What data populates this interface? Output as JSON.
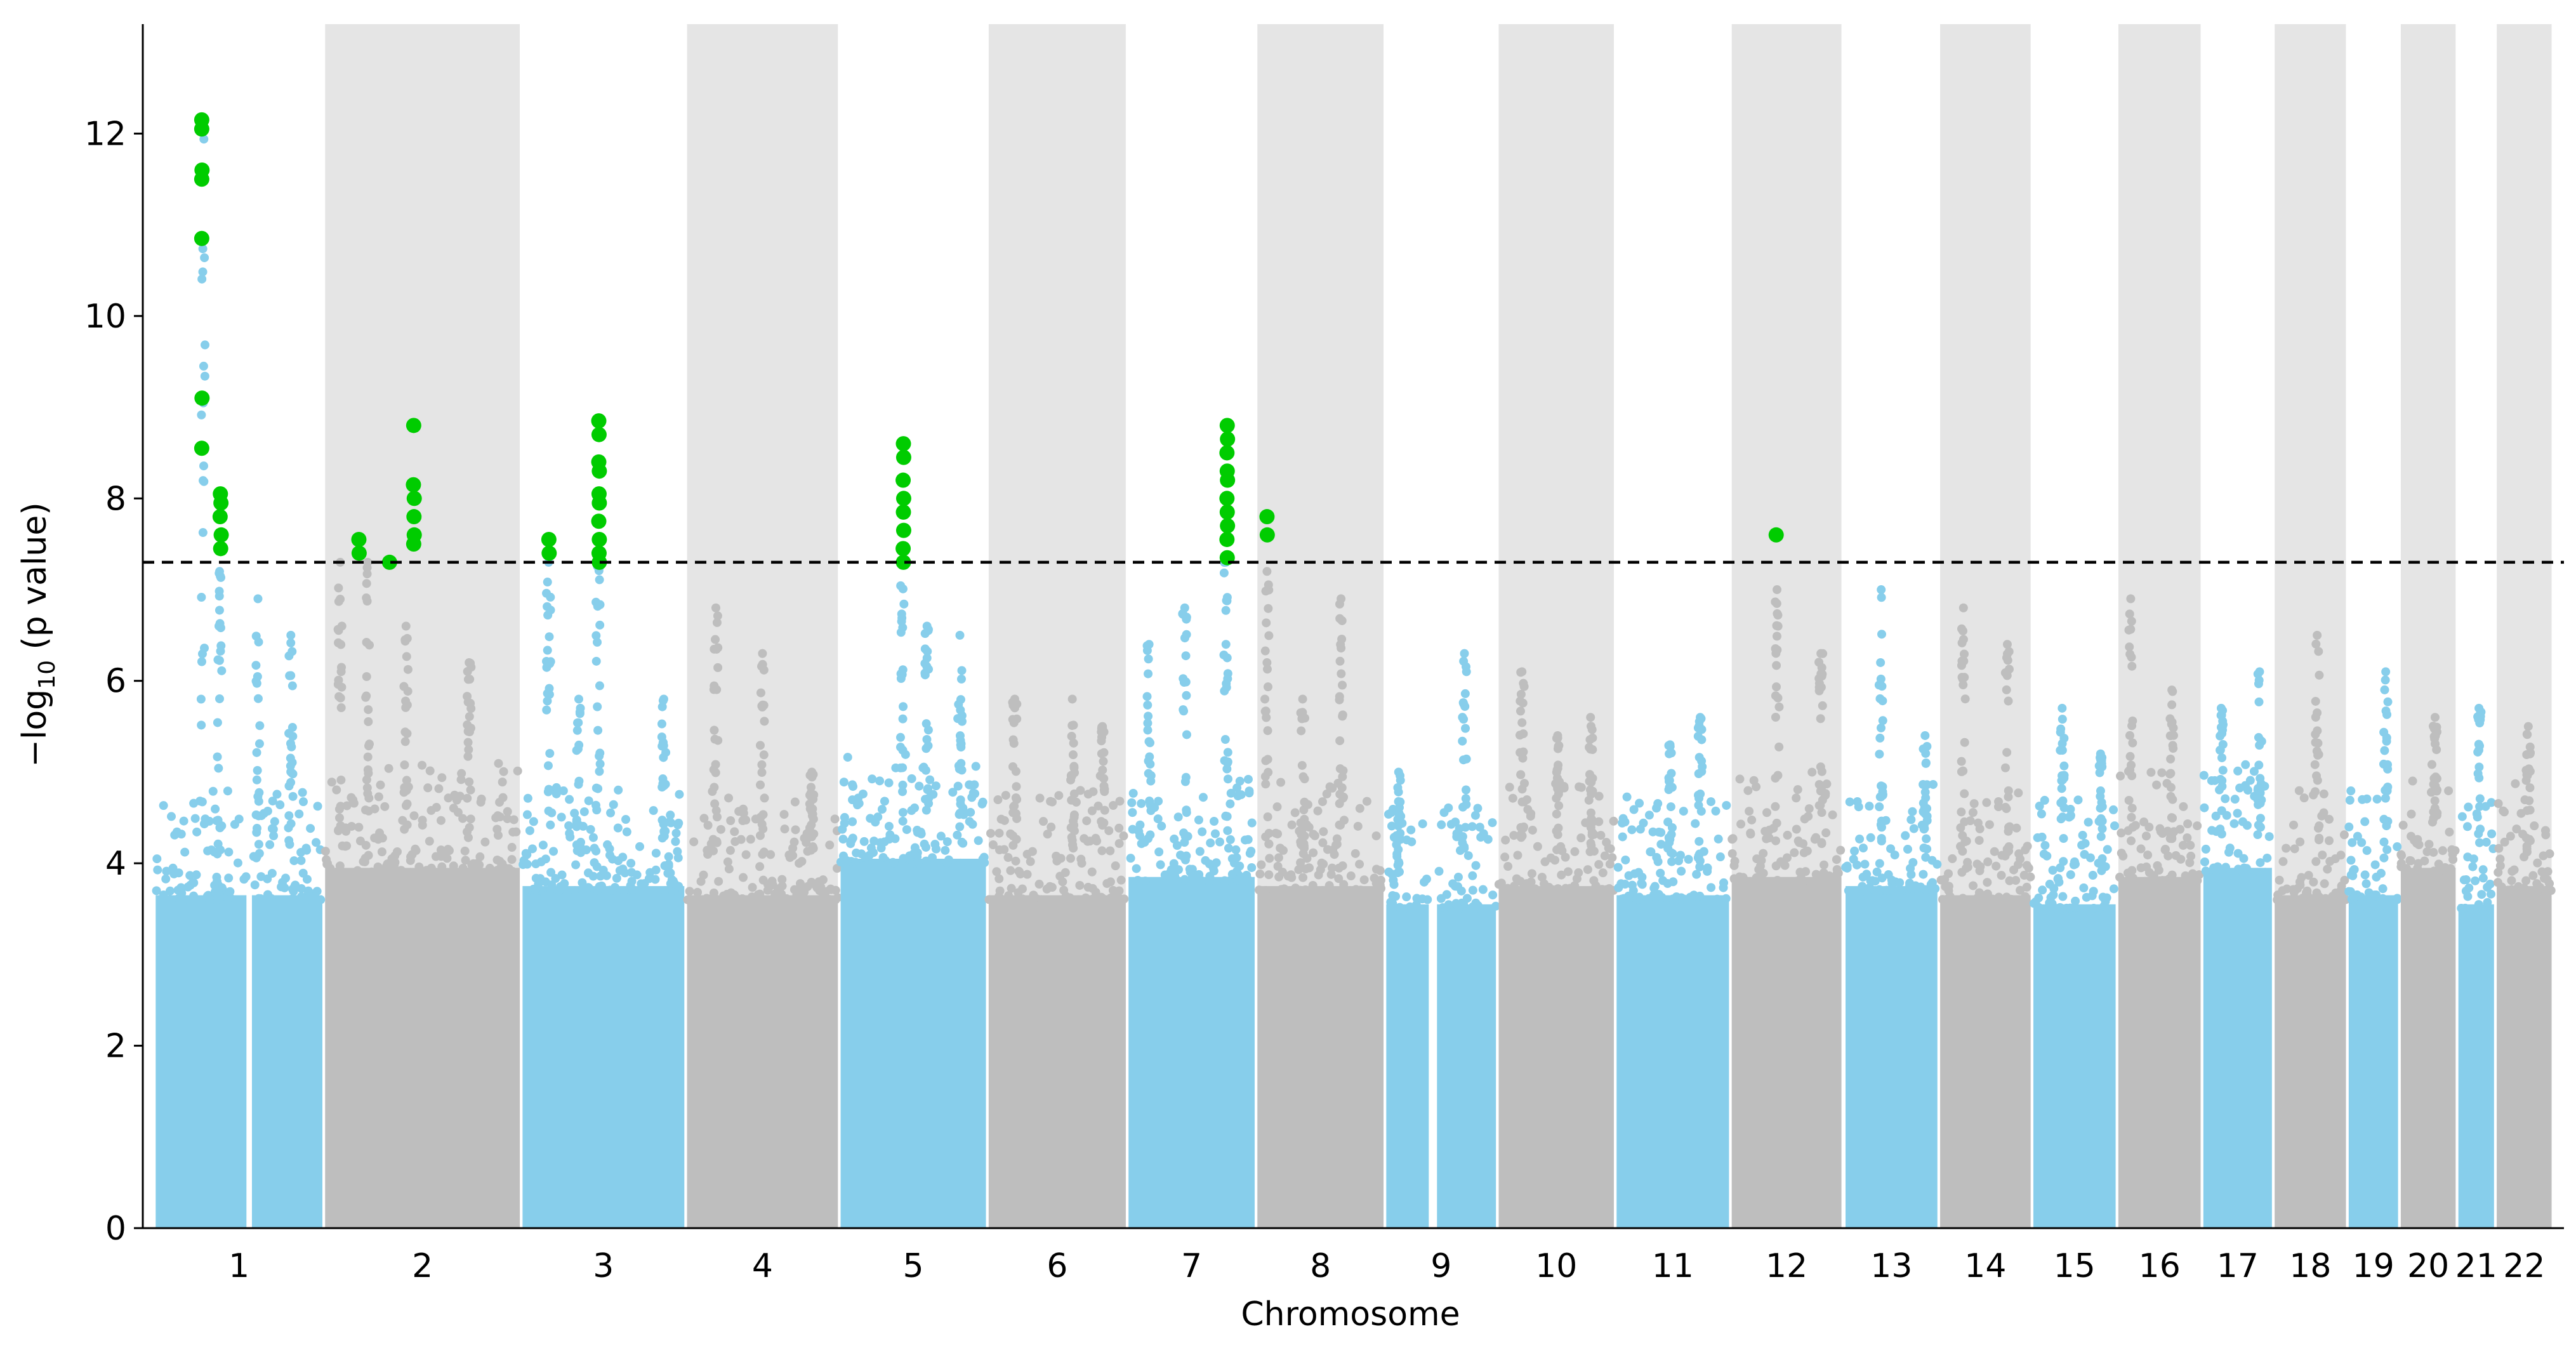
{
  "chart_data": {
    "type": "scatter",
    "subtype": "manhattan",
    "title": "",
    "xlabel": "Chromosome",
    "ylabel_prefix": "−log",
    "ylabel_sub": "10",
    "ylabel_suffix": " (p value)",
    "ylim": [
      0,
      13.2
    ],
    "yticks": [
      0,
      2,
      4,
      6,
      8,
      10,
      12
    ],
    "significance_threshold": 7.3,
    "colors": {
      "odd": "#87ceeb",
      "even": "#bebebe",
      "significant": "#00cc00",
      "band": "#e5e5e5",
      "threshold": "#000000"
    },
    "chromosomes": [
      {
        "label": "1",
        "x0": 0.7,
        "x1": 61.5,
        "parts": [
          [
            0.7,
            33.8
          ],
          [
            35.8,
            61.5
          ]
        ],
        "base": 4.0,
        "peaks": [
          [
            18,
            12.15
          ],
          [
            24,
            7.2
          ],
          [
            38,
            6.9
          ],
          [
            50,
            6.5
          ]
        ],
        "sig": [
          [
            17.5,
            12.15
          ],
          [
            17.5,
            12.05
          ],
          [
            17.6,
            11.6
          ],
          [
            17.5,
            11.5
          ],
          [
            17.5,
            10.85
          ],
          [
            17.6,
            9.1
          ],
          [
            17.5,
            8.55
          ],
          [
            24.3,
            8.05
          ],
          [
            24.5,
            7.95
          ],
          [
            24.2,
            7.8
          ],
          [
            24.6,
            7.6
          ],
          [
            24.4,
            7.45
          ]
        ]
      },
      {
        "label": "2",
        "x0": 62.5,
        "x1": 133.5,
        "parts": [
          [
            62.5,
            133.5
          ]
        ],
        "base": 4.3,
        "peaks": [
          [
            68,
            7.3
          ],
          [
            78,
            7.3
          ],
          [
            92,
            6.6
          ],
          [
            115,
            6.2
          ]
        ],
        "sig": [
          [
            74.8,
            7.55
          ],
          [
            74.9,
            7.4
          ],
          [
            86,
            7.3
          ],
          [
            94.8,
            8.8
          ],
          [
            94.7,
            8.15
          ],
          [
            95,
            8.0
          ],
          [
            94.9,
            7.8
          ],
          [
            95,
            7.6
          ],
          [
            94.8,
            7.5
          ]
        ]
      },
      {
        "label": "3",
        "x0": 134.5,
        "x1": 193.5,
        "parts": [
          [
            134.5,
            193.5
          ]
        ],
        "base": 4.1,
        "peaks": [
          [
            144,
            7.3
          ],
          [
            155,
            5.8
          ],
          [
            162,
            7.3
          ],
          [
            186,
            5.8
          ]
        ],
        "sig": [
          [
            144.1,
            7.55
          ],
          [
            144.2,
            7.4
          ],
          [
            162.3,
            8.85
          ],
          [
            162.4,
            8.7
          ],
          [
            162.3,
            8.4
          ],
          [
            162.5,
            8.3
          ],
          [
            162.4,
            8.05
          ],
          [
            162.5,
            7.95
          ],
          [
            162.3,
            7.75
          ],
          [
            162.5,
            7.55
          ],
          [
            162.4,
            7.4
          ],
          [
            162.5,
            7.3
          ]
        ]
      },
      {
        "label": "4",
        "x0": 194.5,
        "x1": 249.5,
        "parts": [
          [
            194.5,
            249.5
          ]
        ],
        "base": 4.0,
        "peaks": [
          [
            205,
            6.8
          ],
          [
            222,
            6.3
          ],
          [
            240,
            5.0
          ]
        ],
        "sig": []
      },
      {
        "label": "5",
        "x0": 250.5,
        "x1": 303.5,
        "parts": [
          [
            250.5,
            303.5
          ]
        ],
        "base": 4.4,
        "peaks": [
          [
            273,
            7.3
          ],
          [
            282,
            6.6
          ],
          [
            294,
            6.5
          ]
        ],
        "sig": [
          [
            273.4,
            8.6
          ],
          [
            273.5,
            8.45
          ],
          [
            273.3,
            8.2
          ],
          [
            273.5,
            8.0
          ],
          [
            273.4,
            7.85
          ],
          [
            273.5,
            7.65
          ],
          [
            273.3,
            7.45
          ],
          [
            273.4,
            7.3
          ]
        ]
      },
      {
        "label": "6",
        "x0": 304.5,
        "x1": 354.5,
        "parts": [
          [
            304.5,
            354.5
          ]
        ],
        "base": 4.0,
        "peaks": [
          [
            314,
            5.8
          ],
          [
            335,
            5.8
          ],
          [
            346,
            5.5
          ]
        ],
        "sig": []
      },
      {
        "label": "7",
        "x0": 355.5,
        "x1": 401.5,
        "parts": [
          [
            355.5,
            401.5
          ]
        ],
        "base": 4.2,
        "peaks": [
          [
            363,
            6.4
          ],
          [
            376,
            6.8
          ],
          [
            391,
            7.3
          ]
        ],
        "sig": [
          [
            391.5,
            8.8
          ],
          [
            391.6,
            8.65
          ],
          [
            391.4,
            8.5
          ],
          [
            391.5,
            8.3
          ],
          [
            391.6,
            8.2
          ],
          [
            391.4,
            8.0
          ],
          [
            391.5,
            7.85
          ],
          [
            391.6,
            7.7
          ],
          [
            391.4,
            7.55
          ],
          [
            391.5,
            7.35
          ]
        ]
      },
      {
        "label": "8",
        "x0": 402.5,
        "x1": 448.5,
        "parts": [
          [
            402.5,
            448.5
          ]
        ],
        "base": 4.1,
        "peaks": [
          [
            406,
            7.2
          ],
          [
            419,
            5.8
          ],
          [
            433,
            6.9
          ]
        ],
        "sig": [
          [
            406,
            7.8
          ],
          [
            406.1,
            7.6
          ]
        ]
      },
      {
        "label": "9",
        "x0": 449.5,
        "x1": 489.5,
        "parts": [
          [
            449.5,
            465
          ],
          [
            468,
            489.5
          ]
        ],
        "base": 3.9,
        "peaks": [
          [
            454,
            5.0
          ],
          [
            478,
            6.3
          ]
        ],
        "sig": []
      },
      {
        "label": "10",
        "x0": 490.5,
        "x1": 532.5,
        "parts": [
          [
            490.5,
            532.5
          ]
        ],
        "base": 4.1,
        "peaks": [
          [
            499,
            6.1
          ],
          [
            512,
            5.4
          ],
          [
            524,
            5.6
          ]
        ],
        "sig": []
      },
      {
        "label": "11",
        "x0": 533.5,
        "x1": 574.5,
        "parts": [
          [
            533.5,
            574.5
          ]
        ],
        "base": 4.0,
        "peaks": [
          [
            553,
            5.3
          ],
          [
            564,
            5.6
          ]
        ],
        "sig": []
      },
      {
        "label": "12",
        "x0": 575.5,
        "x1": 615.5,
        "parts": [
          [
            575.5,
            615.5
          ]
        ],
        "base": 4.2,
        "peaks": [
          [
            592,
            7.0
          ],
          [
            608,
            6.3
          ]
        ],
        "sig": [
          [
            591.7,
            7.6
          ]
        ]
      },
      {
        "label": "13",
        "x0": 617,
        "x1": 650.5,
        "parts": [
          [
            617,
            650.5
          ]
        ],
        "base": 4.1,
        "peaks": [
          [
            630,
            7.0
          ],
          [
            646,
            5.4
          ]
        ],
        "sig": []
      },
      {
        "label": "14",
        "x0": 651.5,
        "x1": 684.5,
        "parts": [
          [
            651.5,
            684.5
          ]
        ],
        "base": 4.0,
        "peaks": [
          [
            660,
            6.8
          ],
          [
            676,
            6.4
          ]
        ],
        "sig": []
      },
      {
        "label": "15",
        "x0": 685.5,
        "x1": 715.5,
        "parts": [
          [
            685.5,
            715.5
          ]
        ],
        "base": 3.9,
        "peaks": [
          [
            696,
            5.7
          ],
          [
            710,
            5.2
          ]
        ],
        "sig": []
      },
      {
        "label": "16",
        "x0": 716.5,
        "x1": 746.5,
        "parts": [
          [
            716.5,
            746.5
          ]
        ],
        "base": 4.2,
        "peaks": [
          [
            721,
            6.9
          ],
          [
            736,
            5.9
          ]
        ],
        "sig": []
      },
      {
        "label": "17",
        "x0": 747.5,
        "x1": 772.5,
        "parts": [
          [
            747.5,
            772.5
          ]
        ],
        "base": 4.3,
        "peaks": [
          [
            754,
            5.7
          ],
          [
            768,
            6.1
          ]
        ],
        "sig": []
      },
      {
        "label": "18",
        "x0": 773.5,
        "x1": 799.5,
        "parts": [
          [
            773.5,
            799.5
          ]
        ],
        "base": 4.0,
        "peaks": [
          [
            789,
            6.5
          ]
        ],
        "sig": []
      },
      {
        "label": "19",
        "x0": 800.5,
        "x1": 818.5,
        "parts": [
          [
            800.5,
            818.5
          ]
        ],
        "base": 4.0,
        "peaks": [
          [
            814,
            6.1
          ]
        ],
        "sig": []
      },
      {
        "label": "20",
        "x0": 819.5,
        "x1": 839.5,
        "parts": [
          [
            819.5,
            839.5
          ]
        ],
        "base": 4.3,
        "peaks": [
          [
            832,
            5.6
          ]
        ],
        "sig": []
      },
      {
        "label": "21",
        "x0": 840.5,
        "x1": 853.5,
        "parts": [
          [
            840.5,
            853.5
          ]
        ],
        "base": 3.9,
        "peaks": [
          [
            848,
            5.7
          ]
        ],
        "sig": []
      },
      {
        "label": "22",
        "x0": 854.5,
        "x1": 874.5,
        "parts": [
          [
            854.5,
            874.5
          ]
        ],
        "base": 4.1,
        "peaks": [
          [
            866,
            5.5
          ]
        ],
        "sig": []
      }
    ],
    "xlim": [
      -4,
      879
    ]
  }
}
